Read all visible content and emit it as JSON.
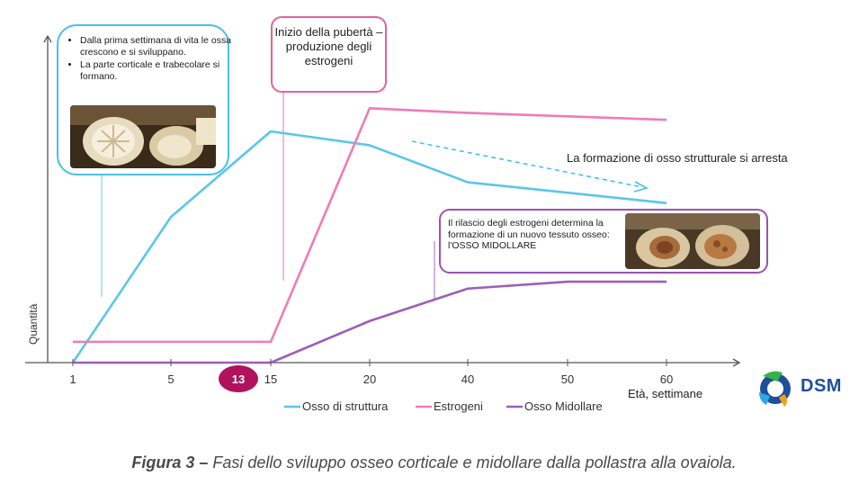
{
  "chart_data": {
    "type": "line",
    "x_ticks": [
      "1",
      "5",
      "13",
      "15",
      "20",
      "40",
      "50",
      "60"
    ],
    "highlighted_tick": "13",
    "xlabel": "Età, settimane",
    "ylabel": "Quantità",
    "series": [
      {
        "name": "Osso di struttura",
        "color": "#5bc6ea",
        "values": [
          0,
          0.63,
          null,
          1.0,
          0.94,
          0.78,
          null,
          0.69
        ]
      },
      {
        "name": "Estrogeni",
        "color": "#f07bb7",
        "values": [
          0.09,
          0.09,
          null,
          0.09,
          1.1,
          1.08,
          null,
          1.05
        ]
      },
      {
        "name": "Osso Midollare",
        "color": "#9a5fb8",
        "values": [
          0,
          0,
          null,
          0,
          0.18,
          0.32,
          0.35,
          0.35
        ]
      }
    ],
    "grid": false,
    "legend_position": "bottom"
  },
  "annotations": {
    "blue_box": {
      "bullets": [
        "Dalla prima settimana di vita le ossa crescono e si sviluppano.",
        "La parte corticale e trabecolare si formano."
      ]
    },
    "pink_box": {
      "text": "Inizio della pubertà – produzione degli estrogeni"
    },
    "purple_box": {
      "text": "Il rilascio degli estrogeni determina la formazione di un nuovo tessuto osseo: l'OSSO MIDOLLARE"
    },
    "arrow_label": "La formazione di osso strutturale si arresta"
  },
  "caption": {
    "label": "Figura 3 –",
    "text": " Fasi dello sviluppo osseo corticale e midollare dalla pollastra alla ovaiola."
  },
  "logo": {
    "text": "DSM"
  },
  "colors": {
    "structure": "#5bc6ea",
    "estrogen": "#f07bb7",
    "medullary": "#9a5fb8",
    "highlight": "#b0125e"
  }
}
